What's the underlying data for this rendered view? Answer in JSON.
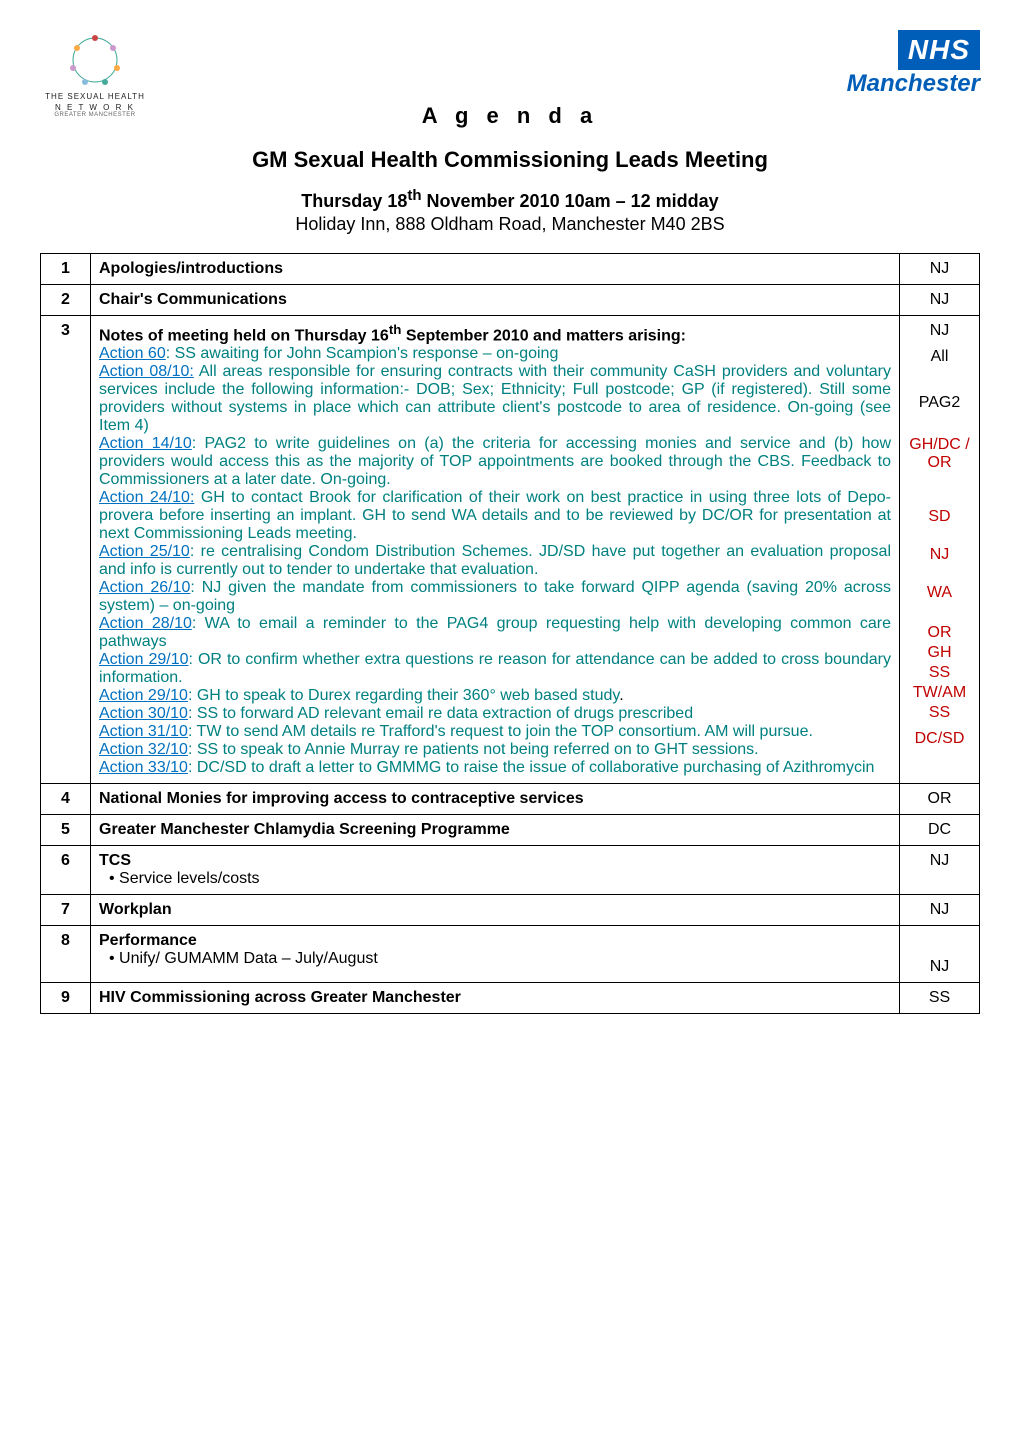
{
  "header": {
    "left_logo_text": "THE SEXUAL HEALTH",
    "left_logo_network": "N E T W O R K",
    "left_logo_sub": "GREATER MANCHESTER",
    "nhs_label": "NHS",
    "nhs_city": "Manchester",
    "agenda_title": "A g e n d a",
    "meeting_title": "GM Sexual Health Commissioning Leads Meeting",
    "meeting_date_prefix": "Thursday 18",
    "meeting_date_suffix": "th",
    "meeting_date_rest": " November 2010      10am – 12 midday",
    "meeting_location": "Holiday Inn, 888 Oldham Road, Manchester M40 2BS"
  },
  "colors": {
    "nhs_blue": "#005eb8",
    "link_blue": "#0070c0",
    "teal": "#008080",
    "red": "#c00000",
    "border": "#000000"
  },
  "rows": [
    {
      "num": "1",
      "title": "Apologies/introductions",
      "owners": [
        "NJ"
      ]
    },
    {
      "num": "2",
      "title": "Chair's Communications",
      "owners": [
        "NJ"
      ]
    },
    {
      "num": "3",
      "title_prefix": "Notes of meeting held on Thursday 16",
      "title_sup": "th",
      "title_rest": " September 2010 and matters arising:",
      "owners_stack": [
        "NJ",
        "All",
        "",
        "PAG2",
        "",
        "GH/DC / OR",
        "SD",
        "NJ",
        "WA",
        "OR",
        "GH",
        "SS",
        "TW/AM",
        "SS",
        "DC/SD"
      ],
      "actions": [
        {
          "label": "Action 60",
          "text": ": SS awaiting for John Scampion's response – on-going"
        },
        {
          "label": "Action 08/10:",
          "text": " All areas responsible for ensuring contracts with their community CaSH providers and voluntary services include the following information:- DOB; Sex; Ethnicity; Full postcode; GP (if registered).  Still some providers without systems in place which can attribute client's postcode to area of residence. On-going (see Item 4)"
        },
        {
          "label": "Action 14/10",
          "text": ": PAG2 to write guidelines on (a) the criteria for accessing monies and service and (b) how providers would access this as the majority of TOP appointments are booked through the CBS.   Feedback to Commissioners at a later date. On-going."
        },
        {
          "label": "Action 24/10:",
          "text": " GH to contact Brook for clarification of their work on best practice in using three lots of Depo-provera before inserting an implant. GH to send WA details and to be reviewed by DC/OR for presentation at next Commissioning Leads meeting."
        },
        {
          "label": "Action 25/10",
          "text": ": re centralising Condom Distribution Schemes.  JD/SD have put together an evaluation proposal and info is currently out to tender to undertake that evaluation."
        },
        {
          "label": "Action 26/10",
          "text": ": NJ given the mandate from commissioners to take forward QIPP agenda (saving 20% across system) – on-going"
        },
        {
          "label": "Action 28/10",
          "text": ":  WA to email a reminder to the PAG4 group requesting help with developing common care pathways"
        },
        {
          "label": "Action 29/10",
          "text": ": OR to confirm whether extra questions re reason for attendance can be added to cross boundary information."
        },
        {
          "label": "Action 29/10",
          "text": ": GH to speak to Durex regarding their 360° web based study",
          "trailing_dot": "."
        },
        {
          "label": "Action 30/10",
          "text": ":  SS to forward AD relevant email re data extraction of drugs prescribed"
        },
        {
          "label": "Action 31/10",
          "text": ":  TW to send AM details re Trafford's request to join the TOP consortium. AM will pursue."
        },
        {
          "label": "Action 32/10",
          "text": ": SS to speak to Annie Murray re patients not being referred on to GHT sessions."
        },
        {
          "label": "Action 33/10",
          "text": ": DC/SD to draft a letter to GMMMG to raise the issue of collaborative purchasing of Azithromycin"
        }
      ]
    },
    {
      "num": "4",
      "title": "National Monies for improving access to contraceptive services",
      "owners": [
        "OR"
      ]
    },
    {
      "num": "5",
      "title": "Greater Manchester Chlamydia Screening Programme",
      "owners": [
        "DC"
      ]
    },
    {
      "num": "6",
      "title": "TCS",
      "bullets": [
        "Service levels/costs"
      ],
      "owners": [
        "NJ"
      ]
    },
    {
      "num": "7",
      "title": "Workplan",
      "owners": [
        "NJ"
      ]
    },
    {
      "num": "8",
      "title": "Performance",
      "bullets": [
        "Unify/ GUMAMM Data –  July/August"
      ],
      "owners": [
        "",
        "NJ"
      ]
    },
    {
      "num": "9",
      "title": "HIV Commissioning across Greater Manchester",
      "owners": [
        "SS"
      ]
    }
  ]
}
